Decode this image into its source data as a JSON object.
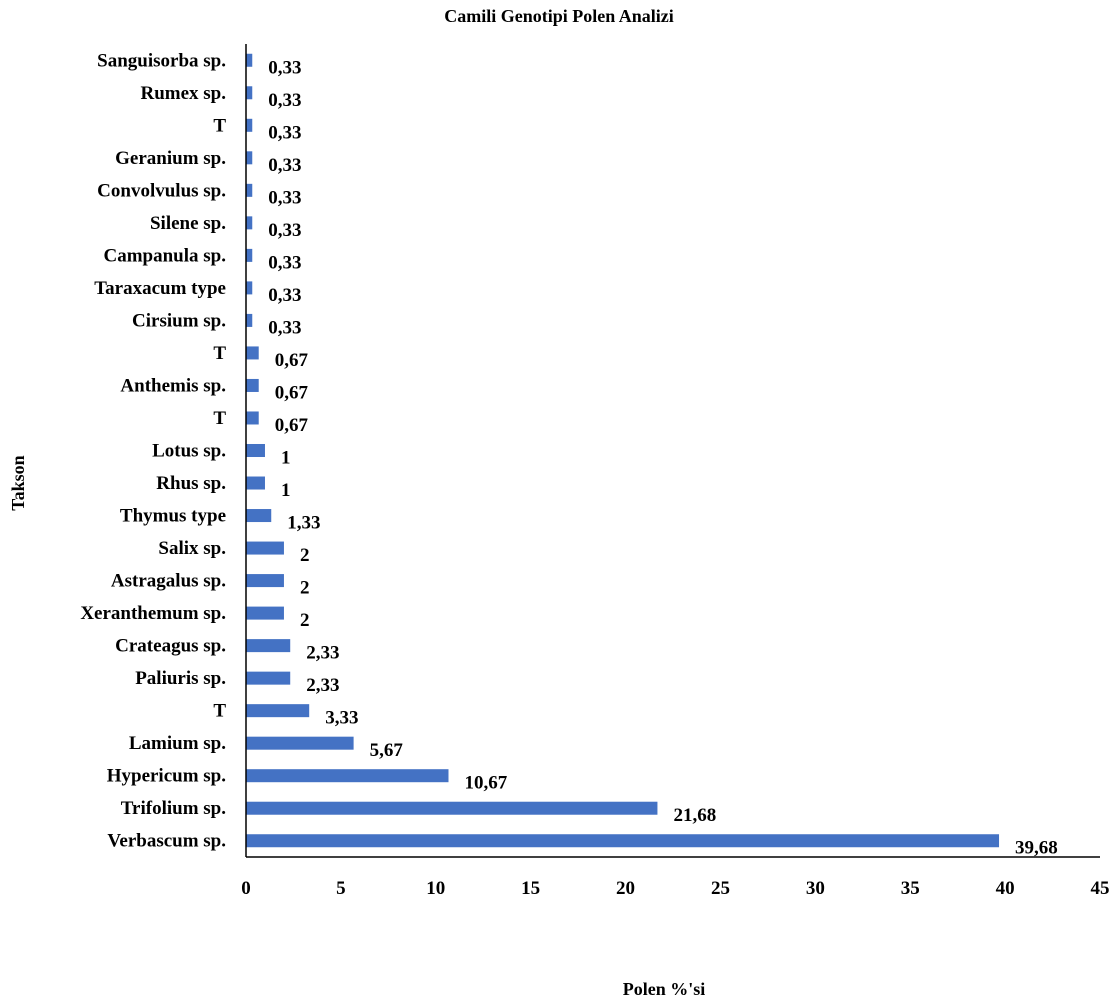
{
  "chart_data": {
    "type": "bar",
    "orientation": "horizontal",
    "title": "Camili Genotipi Polen Analizi",
    "xlabel": "Polen %'si",
    "ylabel": "Takson",
    "xlim": [
      0,
      45
    ],
    "x_ticks": [
      "0",
      "5",
      "10",
      "15",
      "20",
      "25",
      "30",
      "35",
      "40",
      "45"
    ],
    "x_tick_values": [
      0,
      5,
      10,
      15,
      20,
      25,
      30,
      35,
      40,
      45
    ],
    "grid": false,
    "bar_color": "#4472C4",
    "categories": [
      "Sanguisorba sp.",
      "Rumex sp.",
      "T",
      "Geranium sp.",
      "Convolvulus sp.",
      "Silene sp.",
      "Campanula sp.",
      "Taraxacum type",
      "Cirsium sp.",
      "T",
      "Anthemis sp.",
      "T",
      "Lotus sp.",
      "Rhus sp.",
      "Thymus type",
      "Salix sp.",
      "Astragalus sp.",
      "Xeranthemum sp.",
      "Crateagus sp.",
      "Paliuris sp.",
      "T",
      "Lamium sp.",
      "Hypericum sp.",
      "Trifolium sp.",
      "Verbascum sp."
    ],
    "values": [
      0.33,
      0.33,
      0.33,
      0.33,
      0.33,
      0.33,
      0.33,
      0.33,
      0.33,
      0.67,
      0.67,
      0.67,
      1,
      1,
      1.33,
      2,
      2,
      2,
      2.33,
      2.33,
      3.33,
      5.67,
      10.67,
      21.68,
      39.68
    ],
    "data_labels": [
      "0,33",
      "0,33",
      "0,33",
      "0,33",
      "0,33",
      "0,33",
      "0,33",
      "0,33",
      "0,33",
      "0,67",
      "0,67",
      "0,67",
      "1",
      "1",
      "1,33",
      "2",
      "2",
      "2",
      "2,33",
      "2,33",
      "3,33",
      "5,67",
      "10,67",
      "21,68",
      "39,68"
    ]
  }
}
